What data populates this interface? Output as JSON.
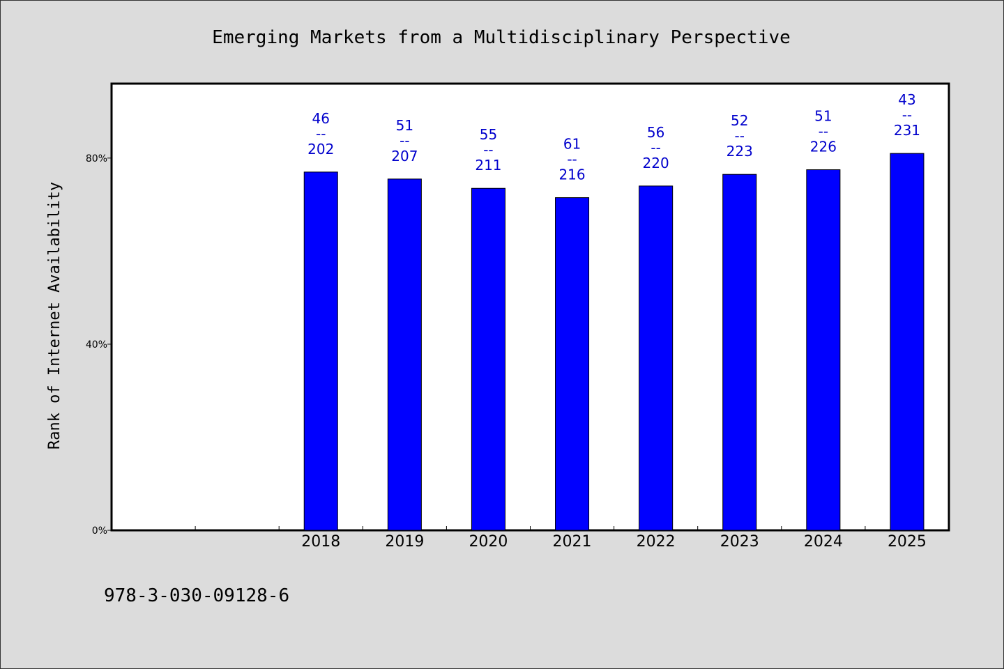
{
  "chart_data": {
    "type": "bar",
    "title": "Emerging Markets from a Multidisciplinary Perspective",
    "xlabel": "",
    "ylabel": "Rank of Internet Availability",
    "categories": [
      "",
      "",
      "2018",
      "2019",
      "2020",
      "2021",
      "2022",
      "2023",
      "2024",
      "2025"
    ],
    "values": [
      null,
      null,
      77,
      75.5,
      73.5,
      71.5,
      74,
      76.5,
      77.5,
      81
    ],
    "value_labels": [
      null,
      null,
      [
        "46",
        "--",
        "202"
      ],
      [
        "51",
        "--",
        "207"
      ],
      [
        "55",
        "--",
        "211"
      ],
      [
        "61",
        "--",
        "216"
      ],
      [
        "56",
        "--",
        "220"
      ],
      [
        "52",
        "--",
        "223"
      ],
      [
        "51",
        "--",
        "226"
      ],
      [
        "43",
        "--",
        "231"
      ]
    ],
    "ylim": [
      0,
      96
    ],
    "yticks": [
      0,
      40,
      80
    ],
    "ytick_labels": [
      "0%",
      "40%",
      "80%"
    ],
    "grid": false,
    "legend": "none",
    "bar_color": "#0000ff",
    "label_color": "#0000cc"
  },
  "footer": {
    "isbn": "978-3-030-09128-6"
  }
}
